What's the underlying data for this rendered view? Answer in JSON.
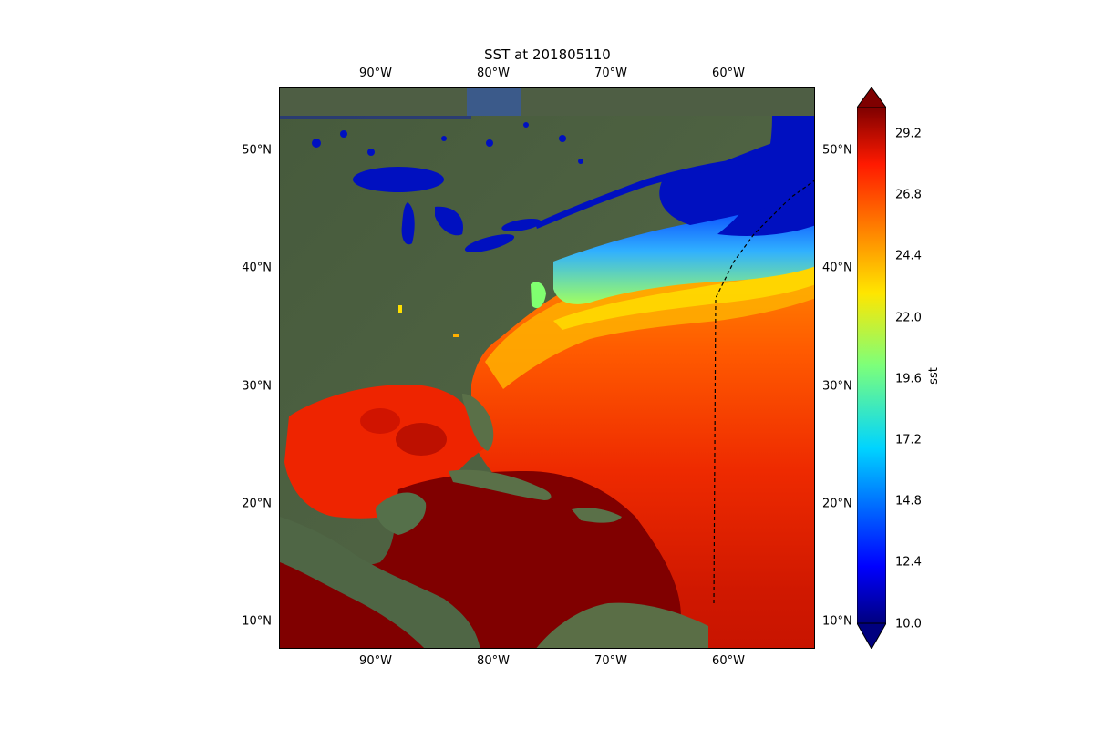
{
  "title": "SST at 201805110",
  "map": {
    "lon_ticks": [
      "90°W",
      "80°W",
      "70°W",
      "60°W"
    ],
    "lat_ticks": [
      "50°N",
      "40°N",
      "30°N",
      "20°N",
      "10°N"
    ]
  },
  "colorbar": {
    "label": "sst",
    "ticks": [
      "29.2",
      "26.8",
      "24.4",
      "22.0",
      "19.6",
      "17.2",
      "14.8",
      "12.4",
      "10.0"
    ],
    "colormap": "jet",
    "min_color": "#00007f",
    "max_color": "#7f0000"
  },
  "colors": {
    "land": "#4a5a3e",
    "cold_water": "#0000c8",
    "warm_water": "#c81400",
    "hot_water": "#800000",
    "boundary_line": "#000000"
  }
}
